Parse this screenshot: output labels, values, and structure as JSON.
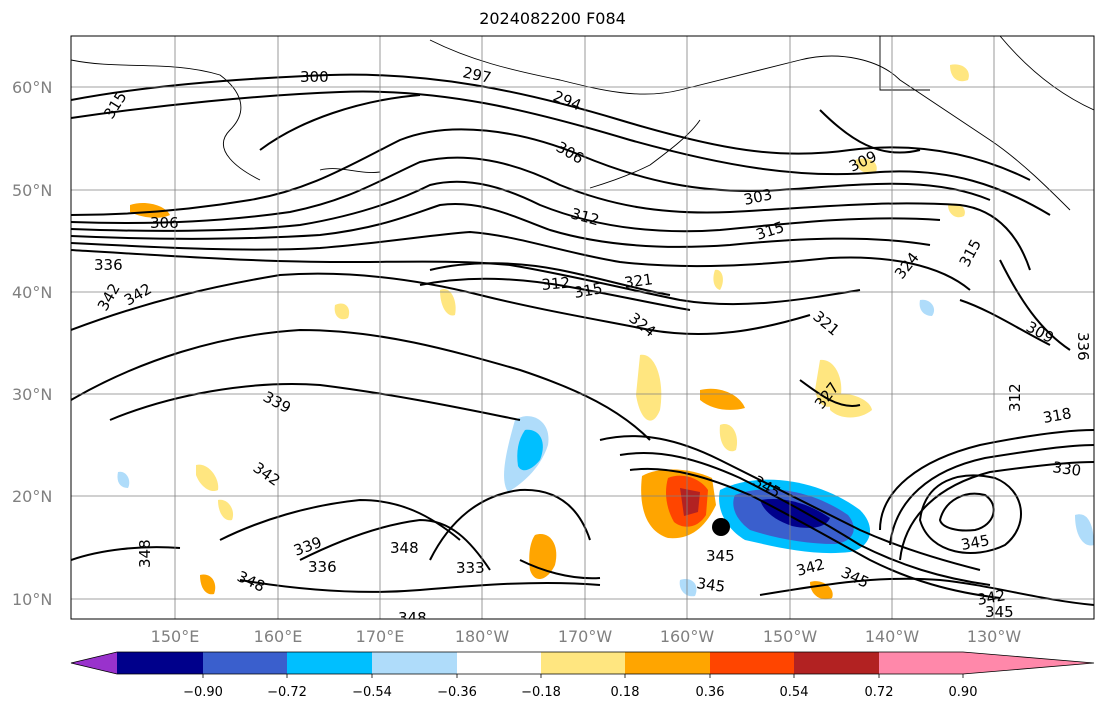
{
  "title": "2024082200 F084",
  "lat_labels": [
    "60°N",
    "50°N",
    "40°N",
    "30°N",
    "20°N",
    "10°N"
  ],
  "lon_labels": [
    "150°E",
    "160°E",
    "170°E",
    "180°W",
    "170°W",
    "160°W",
    "150°W",
    "140°W",
    "130°W"
  ],
  "colorbar": {
    "ticks": [
      "−0.90",
      "−0.72",
      "−0.54",
      "−0.36",
      "−0.18",
      "0.18",
      "0.36",
      "0.54",
      "0.72",
      "0.90"
    ],
    "colors": [
      "#9932cc",
      "#00008b",
      "#3a5fcd",
      "#00bfff",
      "#afdcfa",
      "#ffffff",
      "#ffe680",
      "#ffa500",
      "#ff4500",
      "#b22222",
      "#ff88aa"
    ]
  },
  "contour_labels": [
    "300",
    "297",
    "294",
    "306",
    "315",
    "306",
    "309",
    "303",
    "312",
    "315",
    "321",
    "315",
    "312",
    "324",
    "315",
    "324",
    "309",
    "321",
    "312",
    "318",
    "339",
    "342",
    "327",
    "330",
    "336",
    "339",
    "336",
    "348",
    "348",
    "333",
    "345",
    "345",
    "342",
    "345",
    "345",
    "342",
    "345",
    "342",
    "348",
    "348",
    "345",
    "336",
    "342"
  ],
  "colors": {
    "contour": "#000000",
    "coast": "#000000",
    "grid": "#808080"
  }
}
